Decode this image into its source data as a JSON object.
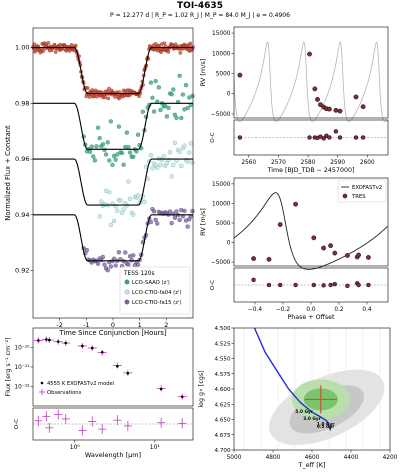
{
  "figure": {
    "title": "TOI-4635",
    "subtitle": "P = 12.277 d | R_P = 1.02 R_J | M_P = 84.0 M_J | e = 0.4906"
  },
  "colors": {
    "tess": "#c94a32",
    "saao": "#3aa57a",
    "fa04": "#bfe6e3",
    "fa15": "#7c62a4",
    "rv": "#7a2d3a",
    "sed_model": "#000000",
    "sed_obs": "#c039c0",
    "track": "#1f2fd6",
    "grey_outer": "#e3e3e3",
    "grey_inner": "#c7c7c7",
    "green_outer": "#b9dfac",
    "green_inner": "#7cc46c",
    "cross": "#d0473b"
  },
  "chart_data": [
    {
      "id": "transit",
      "type": "scatter",
      "xlabel": "Time Since Conjunction [Hours]",
      "ylabel": "Normalized Flux + Constant",
      "xlim": [
        -3,
        3
      ],
      "ylim": [
        0.903,
        1.007
      ],
      "xticks": [
        "-2",
        "-1",
        "0",
        "1",
        "2"
      ],
      "yticks": [
        "0.92",
        "0.94",
        "0.96",
        "0.98",
        "1.00"
      ],
      "ytick_values": [
        0.92,
        0.94,
        0.96,
        0.98,
        1.0
      ],
      "legend": {
        "title": "TESS 120s",
        "position": "bottom-right"
      },
      "series": [
        {
          "name": "TESS 120s",
          "offset": 1.0,
          "depth": 0.0165,
          "xrange": [
            -3,
            3
          ],
          "scatter": 0.0012,
          "spacing": 0.025
        },
        {
          "name": "LCO-SAAO (z')",
          "offset": 0.98,
          "depth": 0.0165,
          "xrange": [
            -1.1,
            3
          ],
          "scatter": 0.0055,
          "spacing": 0.06
        },
        {
          "name": "LCO-CTIO-fa04 (z')",
          "offset": 0.96,
          "depth": 0.0165,
          "xrange": [
            -0.5,
            3
          ],
          "scatter": 0.0045,
          "spacing": 0.06
        },
        {
          "name": "LCO-CTIO-fa15 (z')",
          "offset": 0.94,
          "depth": 0.0165,
          "xrange": [
            -1.1,
            3
          ],
          "scatter": 0.003,
          "spacing": 0.06
        }
      ]
    },
    {
      "id": "rv_time",
      "type": "scatter",
      "xlabel": "Time [BJD_TDB − 2457000]",
      "ylabel": "RV [m/s]",
      "xlim": [
        2555,
        2607
      ],
      "ylim": [
        -6000,
        16500
      ],
      "xticks": [
        "2560",
        "2570",
        "2580",
        "2590",
        "2600"
      ],
      "yticks": [
        "−5000",
        "0",
        "5000",
        "10000",
        "15000"
      ],
      "ytick_values": [
        -5000,
        0,
        5000,
        10000,
        15000
      ],
      "points": [
        [
          2557,
          4600
        ],
        [
          2580.5,
          9800
        ],
        [
          2582.3,
          1200
        ],
        [
          2583.2,
          -1400
        ],
        [
          2584.2,
          -2700
        ],
        [
          2585.3,
          -3300
        ],
        [
          2586.2,
          -3700
        ],
        [
          2587.2,
          -3800
        ],
        [
          2589.4,
          -4100
        ],
        [
          2590.8,
          -4300
        ],
        [
          2596.2,
          -800
        ],
        [
          2598.6,
          -3200
        ]
      ]
    },
    {
      "id": "rv_time_resid",
      "type": "scatter",
      "ylabel": "O-C",
      "points": [
        [
          2557,
          0
        ],
        [
          2580.5,
          0
        ],
        [
          2582.3,
          0
        ],
        [
          2583.2,
          -0.02
        ],
        [
          2584.2,
          0.05
        ],
        [
          2585.3,
          -0.05
        ],
        [
          2586.2,
          0.1
        ],
        [
          2587.2,
          0
        ],
        [
          2589.4,
          0.35
        ],
        [
          2590.8,
          0
        ],
        [
          2596.2,
          0
        ],
        [
          2598.6,
          0
        ]
      ]
    },
    {
      "id": "rv_phase",
      "type": "line",
      "xlabel": "Phase + Offset",
      "ylabel": "RV [m/s]",
      "xlim": [
        -0.55,
        0.55
      ],
      "ylim": [
        -6000,
        16500
      ],
      "xticks": [
        "−0.4",
        "−0.2",
        "0.0",
        "0.2",
        "0.4"
      ],
      "xtick_values": [
        -0.4,
        -0.2,
        0.0,
        0.2,
        0.4
      ],
      "yticks": [
        "−5000",
        "0",
        "5000",
        "10000",
        "15000"
      ],
      "ytick_values": [
        -5000,
        0,
        5000,
        10000,
        15000
      ],
      "legend": {
        "entries": [
          "EXOFASTv2",
          "TRES"
        ],
        "position": "top-right"
      },
      "points": [
        [
          -0.22,
          4600
        ],
        [
          -0.11,
          9800
        ],
        [
          0.02,
          1200
        ],
        [
          0.09,
          -1400
        ],
        [
          0.17,
          -2700
        ],
        [
          0.26,
          -3300
        ],
        [
          0.33,
          -3700
        ],
        [
          0.41,
          -3800
        ],
        [
          -0.41,
          -4100
        ],
        [
          -0.3,
          -4300
        ],
        [
          0.14,
          -800
        ],
        [
          0.34,
          -3200
        ]
      ]
    },
    {
      "id": "rv_phase_resid",
      "type": "scatter",
      "ylabel": "O-C",
      "points": [
        [
          -0.22,
          0
        ],
        [
          -0.11,
          0
        ],
        [
          0.02,
          0
        ],
        [
          0.09,
          -0.02
        ],
        [
          0.17,
          0.05
        ],
        [
          0.26,
          -0.05
        ],
        [
          0.33,
          0.1
        ],
        [
          0.41,
          0
        ],
        [
          -0.41,
          0.3
        ],
        [
          -0.3,
          0
        ],
        [
          0.14,
          0
        ],
        [
          0.34,
          0
        ]
      ]
    },
    {
      "id": "sed",
      "type": "scatter",
      "xlabel": "Wavelength [μm]",
      "ylabel": "Flux [erg s⁻¹ cm⁻²]",
      "xscale": "log",
      "yscale": "log",
      "xlim": [
        0.3,
        30
      ],
      "ylim": [
        1e-13,
        1e-09
      ],
      "xticks": [
        "10⁰",
        "10¹"
      ],
      "xtick_values": [
        1,
        10
      ],
      "yticks": [
        "10⁻¹⁰",
        "10⁻¹¹",
        "10⁻¹²"
      ],
      "ytick_values": [
        1e-10,
        1e-11,
        1e-12
      ],
      "legend": {
        "entries": [
          "4555 K EXOFASTv2 model",
          "Observations"
        ],
        "position": "bottom-left"
      },
      "observations": [
        [
          0.35,
          2.3e-10
        ],
        [
          0.44,
          2.6e-10
        ],
        [
          0.48,
          2.4e-10
        ],
        [
          0.62,
          2e-10
        ],
        [
          0.77,
          1.7e-10
        ],
        [
          1.24,
          1.2e-10
        ],
        [
          1.65,
          9.5e-11
        ],
        [
          2.2,
          5.5e-11
        ],
        [
          3.4,
          1.2e-11
        ],
        [
          4.6,
          5e-12
        ],
        [
          12,
          8e-13
        ],
        [
          22,
          3e-13
        ]
      ],
      "model_points": [
        [
          0.35,
          2.3e-10
        ],
        [
          0.44,
          2.6e-10
        ],
        [
          0.48,
          2.4e-10
        ],
        [
          0.62,
          2e-10
        ],
        [
          0.77,
          1.7e-10
        ],
        [
          1.24,
          1.2e-10
        ],
        [
          1.65,
          9.3e-11
        ],
        [
          2.2,
          5.7e-11
        ],
        [
          3.4,
          1.1e-11
        ],
        [
          4.6,
          4.8e-12
        ],
        [
          12,
          7.5e-13
        ],
        [
          22,
          3e-13
        ]
      ]
    },
    {
      "id": "sed_resid",
      "type": "scatter",
      "ylabel": "O-C",
      "points": [
        [
          0.35,
          0.5
        ],
        [
          0.44,
          1.2
        ],
        [
          0.48,
          -0.6
        ],
        [
          0.62,
          1.5
        ],
        [
          0.77,
          0.8
        ],
        [
          1.24,
          -1.0
        ],
        [
          1.65,
          0.4
        ],
        [
          2.2,
          -0.8
        ],
        [
          3.4,
          0.6
        ],
        [
          4.6,
          -0.3
        ],
        [
          12,
          0.2
        ],
        [
          22,
          0.1
        ]
      ]
    },
    {
      "id": "hr",
      "type": "scatter",
      "xlabel": "T_eff [K]",
      "ylabel": "log g⋆ [cgs]",
      "xlim": [
        5000,
        4200
      ],
      "ylim": [
        4.7,
        4.5
      ],
      "xticks": [
        "5000",
        "4800",
        "4600",
        "4400",
        "4200"
      ],
      "xtick_values": [
        5000,
        4800,
        4600,
        4400,
        4200
      ],
      "yticks": [
        "4.500",
        "4.525",
        "4.550",
        "4.575",
        "4.600",
        "4.625",
        "4.650",
        "4.675",
        "4.700"
      ],
      "ytick_values": [
        4.5,
        4.525,
        4.55,
        4.575,
        4.6,
        4.625,
        4.65,
        4.675,
        4.7
      ],
      "track": [
        [
          4895,
          4.5
        ],
        [
          4840,
          4.54
        ],
        [
          4780,
          4.57
        ],
        [
          4720,
          4.6
        ],
        [
          4660,
          4.622
        ],
        [
          4600,
          4.638
        ],
        [
          4560,
          4.645
        ],
        [
          4525,
          4.652
        ],
        [
          4510,
          4.662
        ],
        [
          4505,
          4.668
        ]
      ],
      "best_fit": {
        "teff": 4555,
        "logg": 4.617
      },
      "age_labels": [
        {
          "text": "5.0 Gyr",
          "teff": 4640,
          "logg": 4.639
        },
        {
          "text": "3.0 Gyr",
          "teff": 4600,
          "logg": 4.651
        },
        {
          "text": "1.0 Gyr",
          "teff": 4530,
          "logg": 4.66
        },
        {
          "text": "0.5 Gyr",
          "teff": 4530,
          "logg": 4.664
        }
      ]
    }
  ]
}
